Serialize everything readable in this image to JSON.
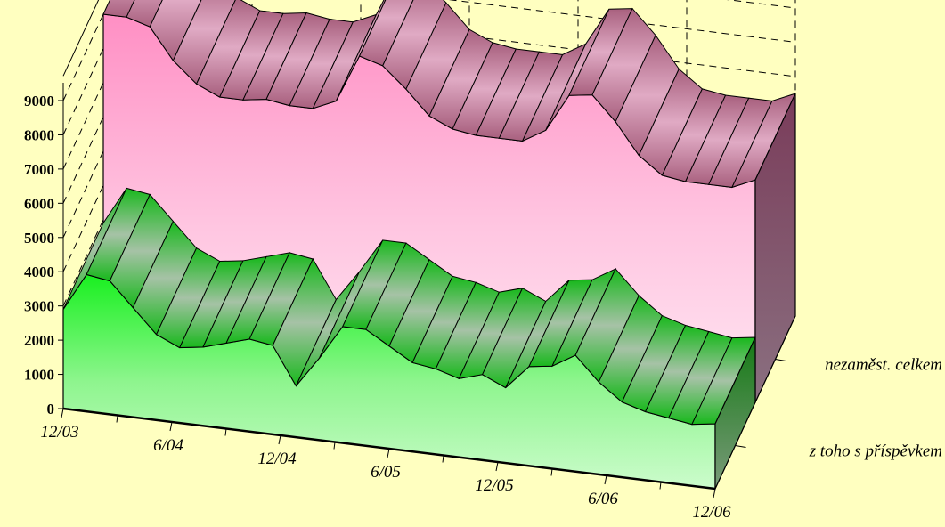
{
  "chart_data": {
    "type": "area",
    "style": "3d-ribbon",
    "title": "",
    "xlabel": "",
    "ylabel": "",
    "ylim": [
      0,
      9000
    ],
    "y_ticks": [
      "0",
      "1000",
      "2000",
      "3000",
      "4000",
      "5000",
      "6000",
      "7000",
      "8000",
      "9000"
    ],
    "x_tick_labels": [
      "12/03",
      "6/04",
      "12/04",
      "6/05",
      "12/05",
      "6/06",
      "12/06"
    ],
    "grid": true,
    "series": [
      {
        "name": "nezaměst. celkem",
        "color": "#ff99cc",
        "values": [
          9000,
          9000,
          8800,
          7900,
          7300,
          7000,
          7000,
          7100,
          7000,
          7000,
          7300,
          8700,
          8500,
          7900,
          7200,
          6900,
          6800,
          6800,
          6800,
          7200,
          8300,
          8400,
          7700,
          6800,
          6300,
          6200,
          6200,
          6200,
          6500
        ]
      },
      {
        "name": "z toho s příspěvkem",
        "color": "#00ff33",
        "values": [
          2900,
          4000,
          3900,
          3200,
          2500,
          2200,
          2300,
          2500,
          2700,
          2600,
          1500,
          2400,
          3400,
          3400,
          3000,
          2600,
          2500,
          2300,
          2500,
          2200,
          2900,
          3000,
          3400,
          2700,
          2200,
          2000,
          1900,
          1800,
          1900
        ]
      }
    ]
  }
}
